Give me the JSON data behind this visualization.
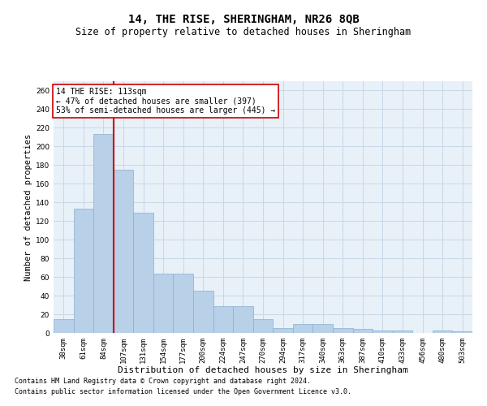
{
  "title": "14, THE RISE, SHERINGHAM, NR26 8QB",
  "subtitle": "Size of property relative to detached houses in Sheringham",
  "xlabel": "Distribution of detached houses by size in Sheringham",
  "ylabel": "Number of detached properties",
  "bar_color": "#b8d0e8",
  "bar_edge_color": "#8ab0d0",
  "grid_color": "#c8d8e8",
  "bg_color": "#e8f0f8",
  "categories": [
    "38sqm",
    "61sqm",
    "84sqm",
    "107sqm",
    "131sqm",
    "154sqm",
    "177sqm",
    "200sqm",
    "224sqm",
    "247sqm",
    "270sqm",
    "294sqm",
    "317sqm",
    "340sqm",
    "363sqm",
    "387sqm",
    "410sqm",
    "433sqm",
    "456sqm",
    "480sqm",
    "503sqm"
  ],
  "values": [
    15,
    133,
    213,
    175,
    129,
    64,
    64,
    45,
    29,
    29,
    15,
    5,
    10,
    10,
    5,
    4,
    3,
    3,
    0,
    3,
    2
  ],
  "ylim": [
    0,
    270
  ],
  "yticks": [
    0,
    20,
    40,
    60,
    80,
    100,
    120,
    140,
    160,
    180,
    200,
    220,
    240,
    260
  ],
  "vline_index": 2.5,
  "vline_color": "#cc0000",
  "annotation_text": "14 THE RISE: 113sqm\n← 47% of detached houses are smaller (397)\n53% of semi-detached houses are larger (445) →",
  "annotation_box_color": "#ffffff",
  "annotation_box_edge": "#cc0000",
  "footer1": "Contains HM Land Registry data © Crown copyright and database right 2024.",
  "footer2": "Contains public sector information licensed under the Open Government Licence v3.0.",
  "title_fontsize": 10,
  "subtitle_fontsize": 8.5,
  "xlabel_fontsize": 8,
  "ylabel_fontsize": 7.5,
  "tick_fontsize": 6.5,
  "annotation_fontsize": 7,
  "footer_fontsize": 6
}
